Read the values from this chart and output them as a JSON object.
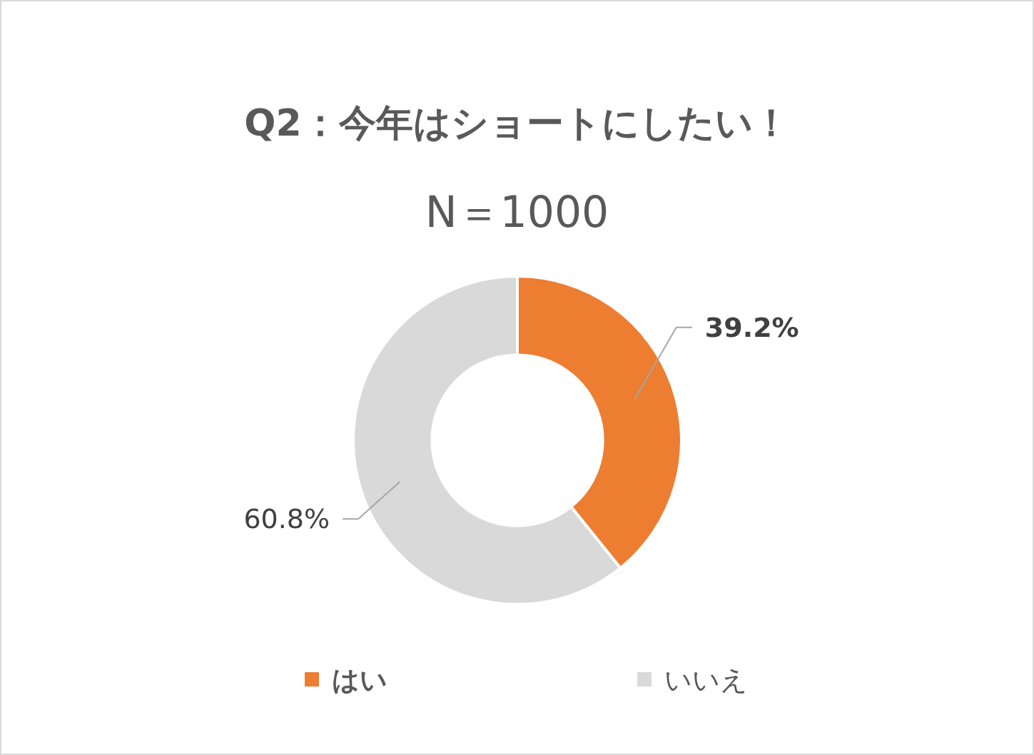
{
  "chart_data": {
    "type": "donut",
    "title": "Q2：今年はショートにしたい！",
    "subtitle": "N＝1000",
    "categories": [
      "はい",
      "いいえ"
    ],
    "values": [
      39.2,
      60.8
    ],
    "colors": [
      "#ed7d31",
      "#d9d9d9"
    ],
    "value_labels": [
      "39.2%",
      "60.8%"
    ],
    "legend": "bottom"
  }
}
